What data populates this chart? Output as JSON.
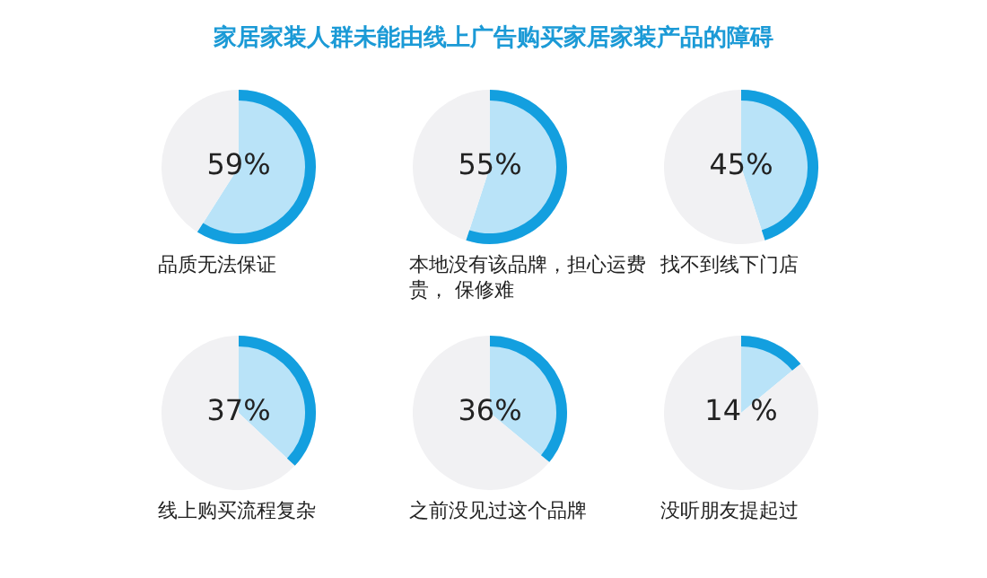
{
  "chart_data": [
    {
      "type": "other",
      "title": "家居家装人群未能由线上广告购买家居家装产品的障碍"
    },
    {
      "type": "pie",
      "title": "品质无法保证",
      "categories": [
        null,
        null
      ],
      "values": [
        59,
        41
      ],
      "colors": [
        "#b9e3f8",
        "#f1f1f3"
      ],
      "value_labels": [
        "59%",
        null
      ],
      "legend": false
    },
    {
      "type": "pie",
      "title": "本地没有该品牌，担心运费贵， 保修难",
      "categories": [
        null,
        null
      ],
      "values": [
        55,
        45
      ],
      "colors": [
        "#b9e3f8",
        "#f1f1f3"
      ],
      "value_labels": [
        "55%",
        null
      ],
      "legend": false
    },
    {
      "type": "pie",
      "title": "找不到线下门店",
      "categories": [
        null,
        null
      ],
      "values": [
        45,
        55
      ],
      "colors": [
        "#b9e3f8",
        "#f1f1f3"
      ],
      "value_labels": [
        "45%",
        null
      ],
      "legend": false
    },
    {
      "type": "pie",
      "title": "线上购买流程复杂",
      "categories": [
        null,
        null
      ],
      "values": [
        37,
        63
      ],
      "colors": [
        "#b9e3f8",
        "#f1f1f3"
      ],
      "value_labels": [
        "37%",
        null
      ],
      "legend": false
    },
    {
      "type": "pie",
      "title": "之前没见过这个品牌",
      "categories": [
        null,
        null
      ],
      "values": [
        36,
        64
      ],
      "colors": [
        "#b9e3f8",
        "#f1f1f3"
      ],
      "value_labels": [
        "36%",
        null
      ],
      "legend": false
    },
    {
      "type": "pie",
      "title": "没听朋友提起过",
      "categories": [
        null,
        null
      ],
      "values": [
        14,
        86
      ],
      "colors": [
        "#b9e3f8",
        "#f1f1f3"
      ],
      "value_labels": [
        "14 %",
        null
      ],
      "legend": false
    }
  ]
}
